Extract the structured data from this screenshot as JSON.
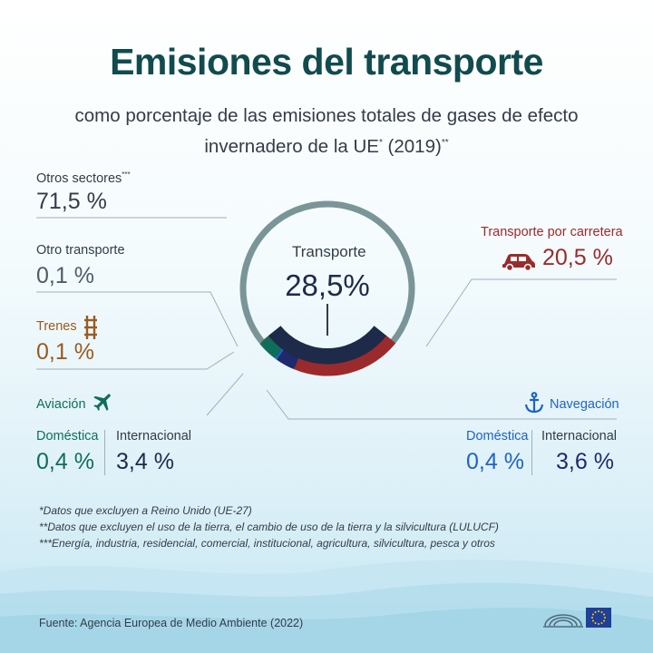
{
  "header": {
    "title": "Emisiones del transporte",
    "subtitle_line1": "como porcentaje de las emisiones totales de gases de efecto",
    "subtitle_line2_a": "invernadero de la UE",
    "subtitle_line2_sup": "*",
    "subtitle_line2_b": " (2019)",
    "subtitle_line2_sup2": "**"
  },
  "center": {
    "label": "Transporte",
    "value": "28,5%"
  },
  "labels": {
    "otros_sectores": "Otros sectores",
    "otros_sectores_sup": "***",
    "otros_sectores_value": "71,5 %",
    "otro_transporte": "Otro transporte",
    "otro_transporte_value": "0,1 %",
    "trenes": "Trenes",
    "trenes_value": "0,1 %",
    "aviacion": "Aviación",
    "domestica": "Doméstica",
    "internacional": "Internacional",
    "aviacion_domestica_value": "0,4 %",
    "aviacion_internacional_value": "3,4 %",
    "carretera": "Transporte por carretera",
    "carretera_value": "20,5 %",
    "navegacion": "Navegación",
    "navegacion_domestica_value": "0,4 %",
    "navegacion_internacional_value": "3,6 %"
  },
  "notes": [
    "*Datos que excluyen a Reino Unido (UE-27)",
    "**Datos que excluyen el uso de la tierra, el cambio de uso de la tierra y la silvicultura (LULUCF)",
    "***Energía, industria, residencial, comercial, institucional, agricultura, silvicultura, pesca y otros"
  ],
  "source": "Fuente: Agencia Europea de Medio Ambiente (2022)",
  "icons": {
    "car": "car-icon",
    "train": "train-icon",
    "plane": "plane-icon",
    "anchor": "anchor-icon",
    "logo": "european-parliament-logo",
    "flag": "eu-flag-icon"
  },
  "colors": {
    "title": "#124b4e",
    "other_sectors": "#7a9598",
    "transport_core": "#1e2a4a",
    "road": "#9b2a2c",
    "rail": "#9a5b20",
    "aviation": "#0f6e5a",
    "nav_domestic": "#1e63c7",
    "nav_international": "#1e2a6b",
    "other_transport": "#6f7c88"
  },
  "chart_data": {
    "type": "pie",
    "title": "Emisiones del transporte",
    "segments": [
      {
        "name": "Otros sectores",
        "value": 71.5
      },
      {
        "name": "Transporte por carretera",
        "value": 20.5
      },
      {
        "name": "Navegación Internacional",
        "value": 3.6
      },
      {
        "name": "Navegación Doméstica",
        "value": 0.4
      },
      {
        "name": "Aviación Internacional",
        "value": 3.4
      },
      {
        "name": "Aviación Doméstica",
        "value": 0.4
      },
      {
        "name": "Trenes",
        "value": 0.1
      },
      {
        "name": "Otro transporte",
        "value": 0.1
      }
    ],
    "inner_total": {
      "name": "Transporte",
      "value": 28.5
    }
  }
}
